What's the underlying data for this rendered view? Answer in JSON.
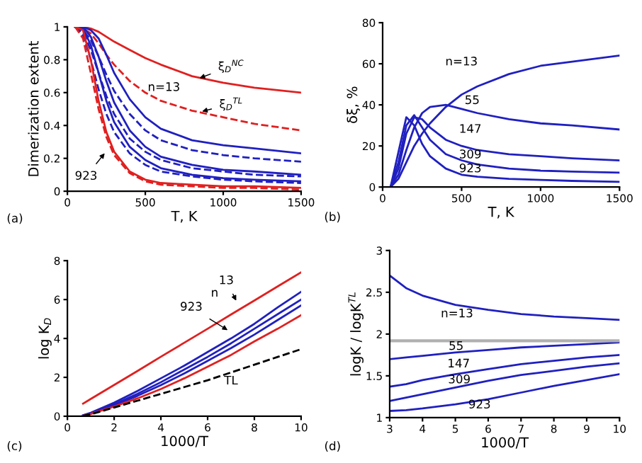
{
  "chart_data": [
    {
      "type": "line",
      "ylabel": "Dimerization extent",
      "xlabel": "T, K",
      "xlim": [
        0,
        1500
      ],
      "xticks": [
        0,
        500,
        1000,
        1500
      ],
      "ylim": [
        0,
        1
      ],
      "yticks": [
        0,
        0.2,
        0.4,
        0.6,
        0.8,
        1
      ],
      "grid": false,
      "legend": false,
      "marker": "none",
      "x": [
        50,
        100,
        150,
        200,
        250,
        300,
        400,
        500,
        600,
        800,
        1000,
        1200,
        1500
      ],
      "series": [
        {
          "color": "#e02020",
          "line_style": "solid",
          "values": [
            1,
            1,
            0.99,
            0.97,
            0.94,
            0.91,
            0.86,
            0.81,
            0.77,
            0.7,
            0.66,
            0.63,
            0.6
          ]
        },
        {
          "color": "#e02020",
          "line_style": "dashed",
          "values": [
            1,
            0.99,
            0.96,
            0.9,
            0.83,
            0.77,
            0.67,
            0.6,
            0.55,
            0.49,
            0.45,
            0.41,
            0.37
          ]
        },
        {
          "color": "#2020c0",
          "line_style": "solid",
          "values": [
            1,
            1,
            0.98,
            0.93,
            0.83,
            0.72,
            0.56,
            0.45,
            0.38,
            0.31,
            0.28,
            0.26,
            0.23
          ]
        },
        {
          "color": "#2020c0",
          "line_style": "dashed",
          "values": [
            1,
            0.98,
            0.92,
            0.82,
            0.71,
            0.61,
            0.47,
            0.37,
            0.31,
            0.25,
            0.22,
            0.2,
            0.18
          ]
        },
        {
          "color": "#2020c0",
          "line_style": "solid",
          "values": [
            1,
            1,
            0.94,
            0.82,
            0.67,
            0.54,
            0.37,
            0.27,
            0.21,
            0.16,
            0.13,
            0.12,
            0.1
          ]
        },
        {
          "color": "#2020c0",
          "line_style": "dashed",
          "values": [
            1,
            0.97,
            0.86,
            0.72,
            0.58,
            0.47,
            0.32,
            0.24,
            0.19,
            0.14,
            0.12,
            0.1,
            0.09
          ]
        },
        {
          "color": "#2020c0",
          "line_style": "solid",
          "values": [
            1,
            0.99,
            0.89,
            0.72,
            0.55,
            0.42,
            0.27,
            0.19,
            0.14,
            0.1,
            0.08,
            0.07,
            0.06
          ]
        },
        {
          "color": "#2020c0",
          "line_style": "dashed",
          "values": [
            1,
            0.95,
            0.8,
            0.62,
            0.47,
            0.36,
            0.23,
            0.16,
            0.12,
            0.09,
            0.07,
            0.06,
            0.05
          ]
        },
        {
          "color": "#e02020",
          "line_style": "solid",
          "values": [
            1,
            0.98,
            0.8,
            0.55,
            0.36,
            0.24,
            0.12,
            0.07,
            0.05,
            0.04,
            0.03,
            0.03,
            0.02
          ]
        },
        {
          "color": "#e02020",
          "line_style": "dashed",
          "values": [
            1,
            0.93,
            0.72,
            0.5,
            0.33,
            0.22,
            0.11,
            0.06,
            0.04,
            0.03,
            0.02,
            0.02,
            0.01
          ]
        }
      ],
      "annotations": [
        "n=13",
        "ξ$_{D}$$^{NC}$",
        "ξ$_{D}$$^{TL}$",
        "923",
        "(a)"
      ]
    },
    {
      "type": "line",
      "ylabel": "δξ, %",
      "xlabel": "T, K",
      "xlim": [
        0,
        1500
      ],
      "xticks": [
        0,
        500,
        1000,
        1500
      ],
      "ylim": [
        0,
        80
      ],
      "yticks": [
        0,
        20,
        40,
        60,
        80
      ],
      "grid": false,
      "legend": false,
      "marker": "none",
      "x": [
        50,
        100,
        150,
        200,
        250,
        300,
        400,
        500,
        600,
        800,
        1000,
        1200,
        1500
      ],
      "series": [
        {
          "color": "#2020c0",
          "line_style": "solid",
          "values": [
            0,
            4,
            12,
            20,
            26,
            31,
            39,
            45,
            49,
            55,
            59,
            61,
            64
          ]
        },
        {
          "color": "#2020c0",
          "line_style": "solid",
          "values": [
            0,
            6,
            18,
            29,
            36,
            39,
            40,
            38,
            36,
            33,
            31,
            30,
            28
          ]
        },
        {
          "color": "#2020c0",
          "line_style": "solid",
          "values": [
            0,
            9,
            26,
            34,
            33,
            29,
            23,
            20,
            18,
            16,
            15,
            14,
            13
          ]
        },
        {
          "color": "#2020c0",
          "line_style": "solid",
          "values": [
            0,
            12,
            30,
            35,
            29,
            23,
            16,
            13,
            11,
            9,
            8,
            7.5,
            7
          ]
        },
        {
          "color": "#2020c0",
          "line_style": "solid",
          "values": [
            0,
            17,
            34,
            30,
            21,
            15,
            9,
            6,
            5,
            4,
            3.5,
            3,
            2.5
          ]
        }
      ],
      "annotations": [
        "n=13",
        "55",
        "147",
        "309",
        "923",
        "(b)"
      ]
    },
    {
      "type": "line",
      "ylabel": "log K$_{D}$",
      "xlabel": "1000/T",
      "xlim": [
        0,
        10
      ],
      "xticks": [
        0,
        2,
        4,
        6,
        8,
        10
      ],
      "ylim": [
        0,
        8
      ],
      "yticks": [
        0,
        2,
        4,
        6,
        8
      ],
      "grid": false,
      "legend": false,
      "marker": "none",
      "x": [
        0.67,
        1,
        2,
        3,
        4,
        5,
        6,
        7,
        8,
        9,
        10
      ],
      "series": [
        {
          "color": "#e02020",
          "line_style": "solid",
          "values": [
            0.65,
            0.89,
            1.61,
            2.33,
            3.06,
            3.78,
            4.5,
            5.23,
            5.95,
            6.68,
            7.4
          ]
        },
        {
          "color": "#2020c0",
          "line_style": "solid",
          "values": [
            0.05,
            0.18,
            0.7,
            1.3,
            1.95,
            2.6,
            3.3,
            4.0,
            4.75,
            5.6,
            6.4
          ]
        },
        {
          "color": "#2020c0",
          "line_style": "solid",
          "values": [
            0.04,
            0.16,
            0.62,
            1.15,
            1.75,
            2.4,
            3.05,
            3.75,
            4.5,
            5.25,
            6.0
          ]
        },
        {
          "color": "#2020c0",
          "line_style": "solid",
          "values": [
            0.03,
            0.14,
            0.55,
            1.05,
            1.6,
            2.2,
            2.85,
            3.5,
            4.2,
            4.95,
            5.7
          ]
        },
        {
          "color": "#e02020",
          "line_style": "solid",
          "values": [
            0.02,
            0.12,
            0.5,
            0.92,
            1.4,
            1.95,
            2.55,
            3.15,
            3.85,
            4.5,
            5.2
          ]
        },
        {
          "color": "#000000",
          "line_style": "dashed",
          "values": [
            0.02,
            0.1,
            0.45,
            0.8,
            1.15,
            1.5,
            1.85,
            2.25,
            2.65,
            3.05,
            3.45
          ]
        }
      ],
      "annotations": [
        "13",
        "n",
        "923",
        "TL",
        "(c)"
      ]
    },
    {
      "type": "line",
      "ylabel": "logK / logK$^{TL}$",
      "xlabel": "1000/T",
      "xlim": [
        3,
        10
      ],
      "xticks": [
        3,
        4,
        5,
        6,
        7,
        8,
        9,
        10
      ],
      "ylim": [
        1,
        3
      ],
      "yticks": [
        1,
        1.5,
        2,
        2.5,
        3
      ],
      "grid": false,
      "legend": false,
      "marker": "none",
      "x": [
        3,
        3.5,
        4,
        5,
        6,
        7,
        8,
        9,
        10
      ],
      "series": [
        {
          "color": "#2020c0",
          "line_style": "solid",
          "values": [
            2.7,
            2.55,
            2.46,
            2.35,
            2.29,
            2.24,
            2.21,
            2.19,
            2.17
          ]
        },
        {
          "color": "#2020c0",
          "line_style": "solid",
          "values": [
            1.7,
            1.72,
            1.74,
            1.78,
            1.81,
            1.84,
            1.86,
            1.88,
            1.9
          ]
        },
        {
          "color": "#2020c0",
          "line_style": "solid",
          "values": [
            1.37,
            1.4,
            1.45,
            1.52,
            1.58,
            1.64,
            1.68,
            1.72,
            1.75
          ]
        },
        {
          "color": "#2020c0",
          "line_style": "solid",
          "values": [
            1.2,
            1.24,
            1.28,
            1.36,
            1.44,
            1.51,
            1.56,
            1.61,
            1.65
          ]
        },
        {
          "color": "#2020c0",
          "line_style": "solid",
          "values": [
            1.08,
            1.09,
            1.11,
            1.16,
            1.22,
            1.3,
            1.38,
            1.45,
            1.52
          ]
        }
      ],
      "ref_lines": [
        {
          "axis": "y",
          "value": 1.92,
          "color": "#b0b0b0",
          "line_style": "solid"
        }
      ],
      "annotations": [
        "n=13",
        "55",
        "147",
        "309",
        "923",
        "(d)"
      ]
    }
  ]
}
